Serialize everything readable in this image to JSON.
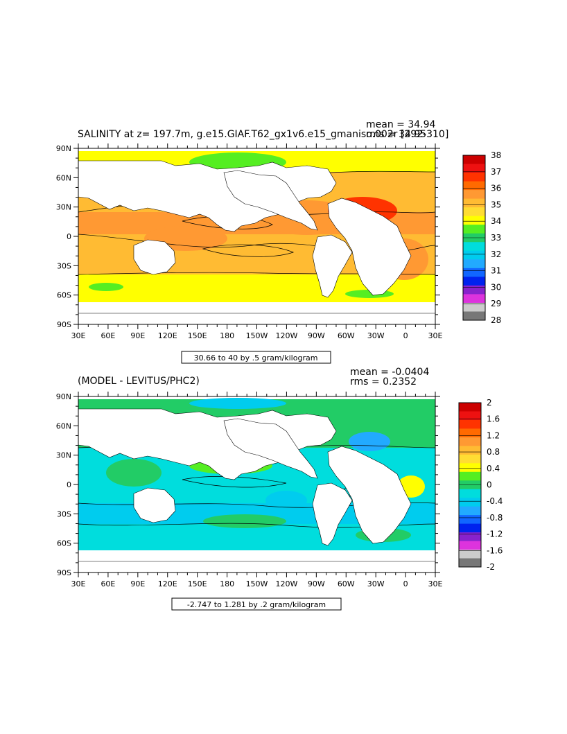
{
  "panels": [
    {
      "title": "SALINITY at z=  197.7m, g.e15.GIAF.T62_gx1v6.e15_gmaniso.002r [292-310]",
      "mean": "mean = 34.94",
      "rms": "rms = 34.95",
      "range_label": "30.66 to 40 by .5 gram/kilogram",
      "colorbar": {
        "labels": [
          "38",
          "37",
          "36",
          "35",
          "34",
          "33",
          "32",
          "31",
          "30",
          "29",
          "28"
        ],
        "colors": [
          "#cc0000",
          "#ee1111",
          "#ff3300",
          "#ff6a00",
          "#ff9933",
          "#ffbb33",
          "#ffdd33",
          "#ffff00",
          "#55ee22",
          "#22cc66",
          "#00dddd",
          "#00ccee",
          "#22aaff",
          "#1166ff",
          "#0022ee",
          "#8822cc",
          "#dd33dd",
          "#cccccc",
          "#777777"
        ]
      }
    },
    {
      "title": "(MODEL - LEVITUS/PHC2)",
      "mean": "mean = -0.0404",
      "rms": "rms = 0.2352",
      "range_label": "-2.747 to 1.281 by .2 gram/kilogram",
      "colorbar": {
        "labels": [
          "2",
          "1.6",
          "1.2",
          "0.8",
          "0.4",
          "0",
          "-0.4",
          "-0.8",
          "-1.2",
          "-1.6",
          "-2"
        ],
        "colors": [
          "#cc0000",
          "#ee1111",
          "#ff3300",
          "#ff6a00",
          "#ff9933",
          "#ffbb33",
          "#ffdd33",
          "#ffff00",
          "#55ee22",
          "#22cc66",
          "#00dddd",
          "#00ccee",
          "#22aaff",
          "#1166ff",
          "#0022ee",
          "#8822cc",
          "#dd33dd",
          "#cccccc",
          "#777777"
        ]
      }
    }
  ],
  "lat_ticks": [
    "90N",
    "60N",
    "30N",
    "0",
    "30S",
    "60S",
    "90S"
  ],
  "lon_ticks": [
    "30E",
    "60E",
    "90E",
    "120E",
    "150E",
    "180",
    "150W",
    "120W",
    "90W",
    "60W",
    "30W",
    "0",
    "30E"
  ]
}
